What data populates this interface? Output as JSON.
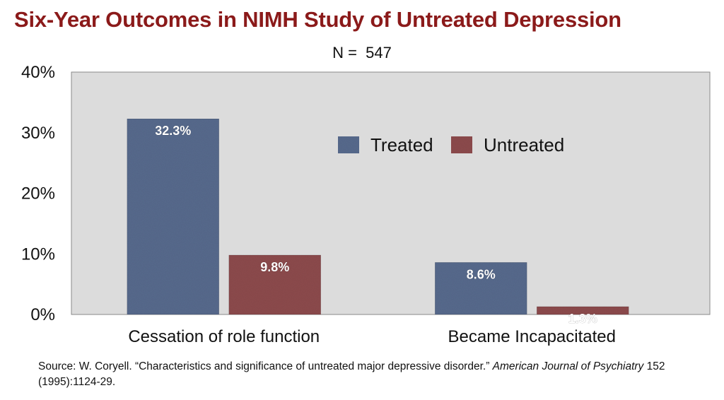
{
  "title": "Six-Year Outcomes in NIMH Study of Untreated Depression",
  "subtitle": "N =  547",
  "source": {
    "prefix": "Source: W. Coryell. “Characteristics and significance of untreated major depressive disorder.” ",
    "journal": "American Journal of Psychiatry",
    "suffix": " 152 (1995):1124-29."
  },
  "colors": {
    "treated": "#56698c",
    "untreated": "#8c4a4c",
    "plot_background": "#dcdcdc",
    "title": "#8b1a1a"
  },
  "chart_data": {
    "type": "bar",
    "title": "Six-Year Outcomes in NIMH Study of Untreated Depression",
    "subtitle": "N =  547",
    "categories": [
      "Cessation of role function",
      "Became Incapacitated"
    ],
    "series": [
      {
        "name": "Treated",
        "values": [
          32.3,
          8.6
        ],
        "labels": [
          "32.3%",
          "8.6%"
        ]
      },
      {
        "name": "Untreated",
        "values": [
          9.8,
          1.3
        ],
        "labels": [
          "9.8%",
          "1.3%"
        ]
      }
    ],
    "ylim": [
      0,
      40
    ],
    "yticks": [
      "0%",
      "10%",
      "20%",
      "30%",
      "40%"
    ],
    "xlabel": "",
    "ylabel": "",
    "grid": false,
    "legend_position": "top-right"
  }
}
